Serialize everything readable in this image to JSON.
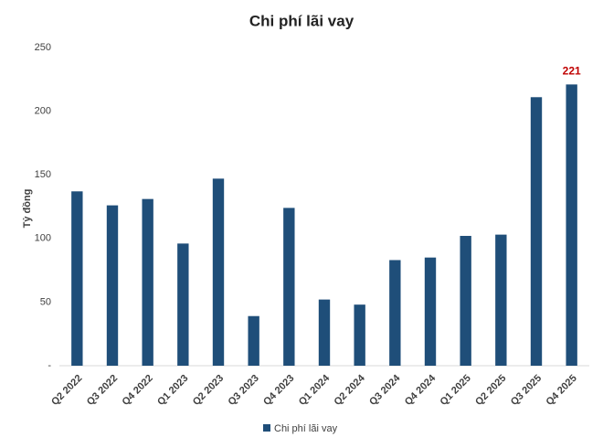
{
  "chart_data": {
    "type": "bar",
    "title": "Chi phí lãi vay",
    "y_label": "Tỷ đồng",
    "categories": [
      "Q2 2022",
      "Q3 2022",
      "Q4 2022",
      "Q1 2023",
      "Q2 2023",
      "Q3 2023",
      "Q4 2023",
      "Q1 2024",
      "Q2 2024",
      "Q3 2024",
      "Q4 2024",
      "Q1 2025",
      "Q2 2025",
      "Q3 2025",
      "Q4 2025"
    ],
    "series": [
      {
        "name": "Chi phí lãi vay",
        "color": "#1f4e79",
        "values": [
          137,
          126,
          131,
          96,
          147,
          39,
          124,
          52,
          48,
          83,
          85,
          102,
          103,
          211,
          221
        ],
        "value_labels": [
          null,
          null,
          null,
          null,
          null,
          null,
          null,
          null,
          null,
          null,
          null,
          null,
          null,
          null,
          "221"
        ],
        "label_color": "#c00000"
      }
    ],
    "ylim": [
      0,
      250
    ],
    "yticks": [
      {
        "value": 0,
        "label": "-"
      },
      50,
      100,
      150,
      200,
      250
    ],
    "grid": false,
    "legend": "bottom"
  }
}
